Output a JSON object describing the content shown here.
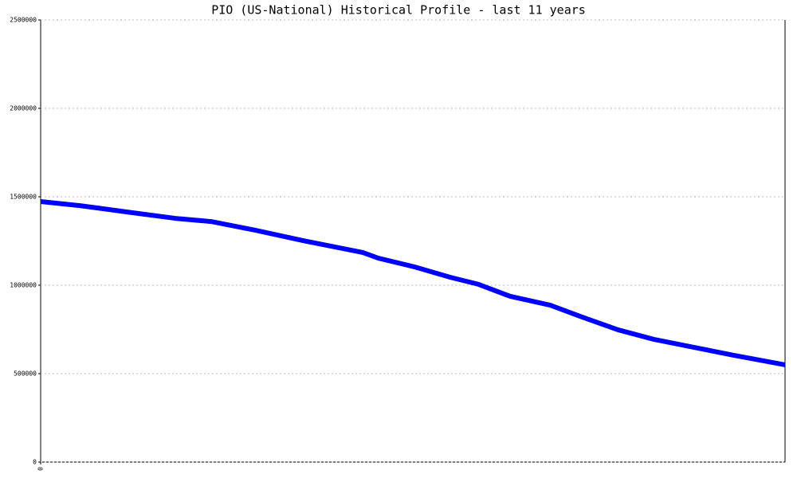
{
  "chart_data": {
    "type": "line",
    "title": "PIO (US-National) Historical Profile - last 11 years",
    "x": [
      0,
      0.58,
      1.28,
      1.99,
      2.52,
      3.17,
      3.88,
      4.76,
      4.99,
      5.52,
      6.05,
      6.47,
      6.94,
      7.53,
      8.0,
      8.53,
      9.06,
      9.65,
      10.24,
      11
    ],
    "series": [
      {
        "color": "#0000ff",
        "values": [
          1473000,
          1450000,
          1414000,
          1378000,
          1360000,
          1311000,
          1252000,
          1185000,
          1153000,
          1104000,
          1045000,
          1005000,
          937000,
          887000,
          820000,
          748000,
          694000,
          649000,
          604000,
          550000
        ]
      }
    ],
    "xlim": [
      0,
      11
    ],
    "xticks": [
      0
    ],
    "ylim": [
      0,
      2500000
    ],
    "yticks": [
      0,
      500000,
      1000000,
      1500000,
      2000000,
      2500000
    ],
    "grid": true
  }
}
